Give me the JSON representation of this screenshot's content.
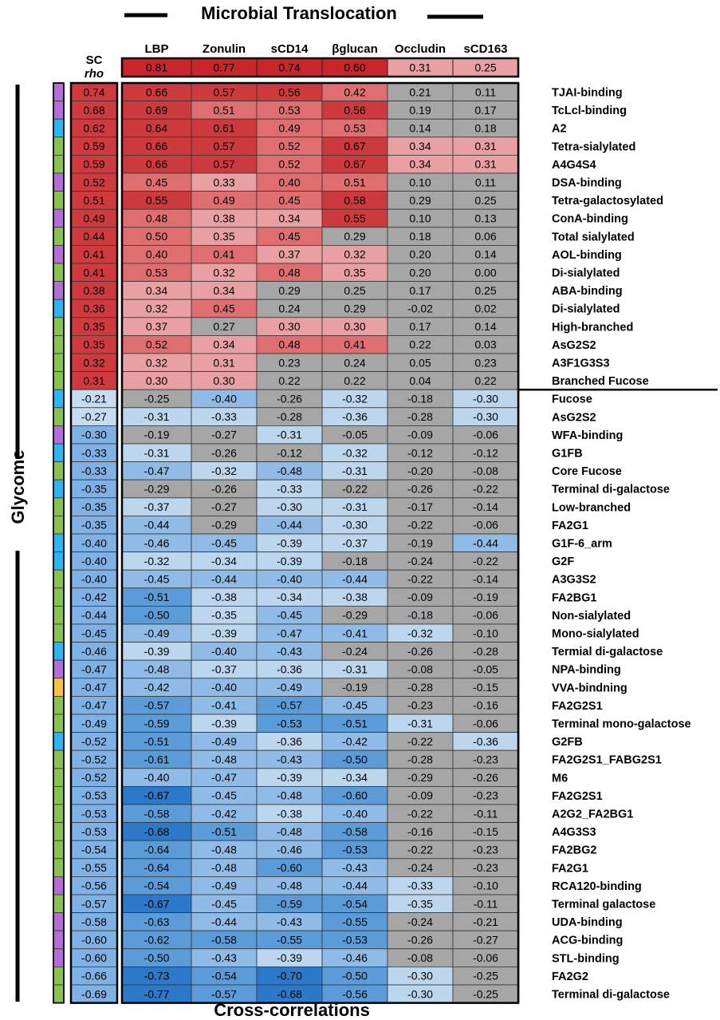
{
  "title": "Microbial Translocation",
  "left_label": "Glycome",
  "bottom_label": "Cross-correlations",
  "sc_header": [
    "SC",
    "rho"
  ],
  "chart_data": {
    "type": "heatmap",
    "title": "Microbial Translocation",
    "columns": [
      "LBP",
      "Zonulin",
      "sCD14",
      "βglucan",
      "Occludin",
      "sCD163"
    ],
    "header_rho": [
      0.81,
      0.77,
      0.74,
      0.6,
      0.31,
      0.25
    ],
    "rows": [
      {
        "name": "TJAI-binding",
        "group": "lectin",
        "sc": "0.74",
        "values": [
          "0.66",
          "0.57",
          "0.56",
          "0.42",
          "0.21",
          "0.11"
        ]
      },
      {
        "name": "TcLcl-binding",
        "group": "lectin",
        "sc": "0.68",
        "values": [
          "0.69",
          "0.51",
          "0.53",
          "0.56",
          "0.19",
          "0.17"
        ]
      },
      {
        "name": "A2",
        "group": "igg",
        "sc": "0.62",
        "values": [
          "0.64",
          "0.61",
          "0.49",
          "0.53",
          "0.14",
          "0.18"
        ]
      },
      {
        "name": "Tetra-sialylated",
        "group": "nglycan",
        "sc": "0.59",
        "values": [
          "0.66",
          "0.57",
          "0.52",
          "0.67",
          "0.34",
          "0.31"
        ]
      },
      {
        "name": "A4G4S4",
        "group": "nglycan",
        "sc": "0.59",
        "values": [
          "0.66",
          "0.57",
          "0.52",
          "0.67",
          "0.34",
          "0.31"
        ]
      },
      {
        "name": "DSA-binding",
        "group": "lectin",
        "sc": "0.52",
        "values": [
          "0.45",
          "0.33",
          "0.40",
          "0.51",
          "0.10",
          "0.11"
        ]
      },
      {
        "name": "Tetra-galactosylated",
        "group": "nglycan",
        "sc": "0.51",
        "values": [
          "0.55",
          "0.49",
          "0.45",
          "0.58",
          "0.29",
          "0.25"
        ]
      },
      {
        "name": "ConA-binding",
        "group": "lectin",
        "sc": "0.49",
        "values": [
          "0.48",
          "0.38",
          "0.34",
          "0.55",
          "0.10",
          "0.13"
        ]
      },
      {
        "name": "Total sialylated",
        "group": "nglycan",
        "sc": "0.44",
        "values": [
          "0.50",
          "0.35",
          "0.45",
          "0.29",
          "0.18",
          "0.06"
        ]
      },
      {
        "name": "AOL-binding",
        "group": "lectin",
        "sc": "0.41",
        "values": [
          "0.40",
          "0.41",
          "0.37",
          "0.32",
          "0.20",
          "0.14"
        ]
      },
      {
        "name": "Di-sialylated",
        "group": "nglycan",
        "sc": "0.41",
        "values": [
          "0.53",
          "0.32",
          "0.48",
          "0.35",
          "0.20",
          "0.00"
        ]
      },
      {
        "name": "ABA-binding",
        "group": "lectin",
        "sc": "0.38",
        "values": [
          "0.34",
          "0.34",
          "0.29",
          "0.25",
          "0.17",
          "0.25"
        ]
      },
      {
        "name": "Di-sialylated",
        "group": "igg",
        "sc": "0.36",
        "values": [
          "0.32",
          "0.45",
          "0.24",
          "0.29",
          "-0.02",
          "0.02"
        ]
      },
      {
        "name": "High-branched",
        "group": "nglycan",
        "sc": "0.35",
        "values": [
          "0.37",
          "0.27",
          "0.30",
          "0.30",
          "0.17",
          "0.14"
        ]
      },
      {
        "name": "AsG2S2",
        "group": "nglycan",
        "sc": "0.35",
        "values": [
          "0.52",
          "0.34",
          "0.48",
          "0.41",
          "0.22",
          "0.03"
        ]
      },
      {
        "name": "A3F1G3S3",
        "group": "nglycan",
        "sc": "0.32",
        "values": [
          "0.32",
          "0.31",
          "0.23",
          "0.24",
          "0.05",
          "0.23"
        ]
      },
      {
        "name": "Branched Fucose",
        "group": "nglycan",
        "sc": "0.31",
        "values": [
          "0.30",
          "0.30",
          "0.22",
          "0.22",
          "0.04",
          "0.22"
        ]
      },
      {
        "name": "Fucose",
        "group": "igg",
        "sc": "-0.21",
        "values": [
          "-0.25",
          "-0.40",
          "-0.26",
          "-0.32",
          "-0.18",
          "-0.30"
        ]
      },
      {
        "name": "AsG2S2",
        "group": "nglycan",
        "sc": "-0.27",
        "values": [
          "-0.31",
          "-0.33",
          "-0.28",
          "-0.36",
          "-0.28",
          "-0.30"
        ]
      },
      {
        "name": "WFA-binding",
        "group": "lectin",
        "sc": "-0.30",
        "values": [
          "-0.19",
          "-0.27",
          "-0.31",
          "-0.05",
          "-0.09",
          "-0.06"
        ]
      },
      {
        "name": "G1FB",
        "group": "igg",
        "sc": "-0.33",
        "values": [
          "-0.31",
          "-0.26",
          "-0.12",
          "-0.32",
          "-0.12",
          "-0.12"
        ]
      },
      {
        "name": "Core Fucose",
        "group": "nglycan",
        "sc": "-0.33",
        "values": [
          "-0.47",
          "-0.32",
          "-0.48",
          "-0.31",
          "-0.20",
          "-0.08"
        ]
      },
      {
        "name": "Terminal di-galactose",
        "group": "igg",
        "sc": "-0.35",
        "values": [
          "-0.29",
          "-0.26",
          "-0.33",
          "-0.22",
          "-0.26",
          "-0.22"
        ]
      },
      {
        "name": "Low-branched",
        "group": "nglycan",
        "sc": "-0.35",
        "values": [
          "-0.37",
          "-0.27",
          "-0.30",
          "-0.31",
          "-0.17",
          "-0.14"
        ]
      },
      {
        "name": "FA2G1",
        "group": "nglycan",
        "sc": "-0.35",
        "values": [
          "-0.44",
          "-0.29",
          "-0.44",
          "-0.30",
          "-0.22",
          "-0.06"
        ]
      },
      {
        "name": "G1F-6_arm",
        "group": "igg",
        "sc": "-0.40",
        "values": [
          "-0.46",
          "-0.45",
          "-0.39",
          "-0.37",
          "-0.19",
          "-0.44"
        ]
      },
      {
        "name": "G2F",
        "group": "igg",
        "sc": "-0.40",
        "values": [
          "-0.32",
          "-0.34",
          "-0.39",
          "-0.18",
          "-0.24",
          "-0.22"
        ]
      },
      {
        "name": "A3G3S2",
        "group": "nglycan",
        "sc": "-0.40",
        "values": [
          "-0.45",
          "-0.44",
          "-0.40",
          "-0.44",
          "-0.22",
          "-0.14"
        ]
      },
      {
        "name": "FA2BG1",
        "group": "nglycan",
        "sc": "-0.42",
        "values": [
          "-0.51",
          "-0.38",
          "-0.34",
          "-0.38",
          "-0.09",
          "-0.19"
        ]
      },
      {
        "name": "Non-sialylated",
        "group": "nglycan",
        "sc": "-0.44",
        "values": [
          "-0.50",
          "-0.35",
          "-0.45",
          "-0.29",
          "-0.18",
          "-0.06"
        ]
      },
      {
        "name": "Mono-sialylated",
        "group": "nglycan",
        "sc": "-0.45",
        "values": [
          "-0.49",
          "-0.39",
          "-0.47",
          "-0.41",
          "-0.32",
          "-0.10"
        ]
      },
      {
        "name": "Termial di-galactose",
        "group": "igg",
        "sc": "-0.46",
        "values": [
          "-0.39",
          "-0.40",
          "-0.43",
          "-0.24",
          "-0.26",
          "-0.28"
        ]
      },
      {
        "name": "NPA-binding",
        "group": "lectin",
        "sc": "-0.47",
        "values": [
          "-0.48",
          "-0.37",
          "-0.36",
          "-0.31",
          "-0.08",
          "-0.05"
        ]
      },
      {
        "name": "VVA-bindning",
        "group": "other",
        "sc": "-0.47",
        "values": [
          "-0.42",
          "-0.40",
          "-0.49",
          "-0.19",
          "-0.28",
          "-0.15"
        ]
      },
      {
        "name": "FA2G2S1",
        "group": "nglycan",
        "sc": "-0.47",
        "values": [
          "-0.57",
          "-0.41",
          "-0.57",
          "-0.45",
          "-0.23",
          "-0.16"
        ]
      },
      {
        "name": "Terminal mono-galactose",
        "group": "nglycan",
        "sc": "-0.49",
        "values": [
          "-0.59",
          "-0.39",
          "-0.53",
          "-0.51",
          "-0.31",
          "-0.06"
        ]
      },
      {
        "name": "G2FB",
        "group": "igg",
        "sc": "-0.52",
        "values": [
          "-0.51",
          "-0.49",
          "-0.36",
          "-0.42",
          "-0.22",
          "-0.36"
        ]
      },
      {
        "name": "FA2G2S1_FABG2S1",
        "group": "nglycan",
        "sc": "-0.52",
        "values": [
          "-0.61",
          "-0.48",
          "-0.43",
          "-0.50",
          "-0.28",
          "-0.23"
        ]
      },
      {
        "name": "M6",
        "group": "nglycan",
        "sc": "-0.52",
        "values": [
          "-0.40",
          "-0.47",
          "-0.39",
          "-0.34",
          "-0.29",
          "-0.26"
        ]
      },
      {
        "name": "FA2G2S1",
        "group": "nglycan",
        "sc": "-0.53",
        "values": [
          "-0.67",
          "-0.45",
          "-0.48",
          "-0.60",
          "-0.09",
          "-0.23"
        ]
      },
      {
        "name": "A2G2_FA2BG1",
        "group": "nglycan",
        "sc": "-0.53",
        "values": [
          "-0.58",
          "-0.42",
          "-0.38",
          "-0.40",
          "-0.22",
          "-0.11"
        ]
      },
      {
        "name": "A4G3S3",
        "group": "nglycan",
        "sc": "-0.53",
        "values": [
          "-0.68",
          "-0.51",
          "-0.48",
          "-0.58",
          "-0.16",
          "-0.15"
        ]
      },
      {
        "name": "FA2BG2",
        "group": "nglycan",
        "sc": "-0.54",
        "values": [
          "-0.64",
          "-0.48",
          "-0.46",
          "-0.53",
          "-0.22",
          "-0.23"
        ]
      },
      {
        "name": "FA2G1",
        "group": "nglycan",
        "sc": "-0.55",
        "values": [
          "-0.64",
          "-0.48",
          "-0.60",
          "-0.43",
          "-0.24",
          "-0.23"
        ]
      },
      {
        "name": "RCA120-binding",
        "group": "lectin",
        "sc": "-0.56",
        "values": [
          "-0.54",
          "-0.49",
          "-0.48",
          "-0.44",
          "-0.33",
          "-0.10"
        ]
      },
      {
        "name": "Terminal galactose",
        "group": "nglycan",
        "sc": "-0.57",
        "values": [
          "-0.67",
          "-0.45",
          "-0.59",
          "-0.54",
          "-0.35",
          "-0.11"
        ]
      },
      {
        "name": "UDA-binding",
        "group": "lectin",
        "sc": "-0.58",
        "values": [
          "-0.63",
          "-0.44",
          "-0.43",
          "-0.55",
          "-0.24",
          "-0.21"
        ]
      },
      {
        "name": "ACG-binding",
        "group": "lectin",
        "sc": "-0.60",
        "values": [
          "-0.62",
          "-0.58",
          "-0.55",
          "-0.53",
          "-0.26",
          "-0.27"
        ]
      },
      {
        "name": "STL-binding",
        "group": "lectin",
        "sc": "-0.60",
        "values": [
          "-0.50",
          "-0.43",
          "-0.39",
          "-0.46",
          "-0.08",
          "-0.06"
        ]
      },
      {
        "name": "FA2G2",
        "group": "nglycan",
        "sc": "-0.66",
        "values": [
          "-0.73",
          "-0.54",
          "-0.70",
          "-0.50",
          "-0.30",
          "-0.25"
        ]
      },
      {
        "name": "Terminal di-galactose",
        "group": "nglycan",
        "sc": "-0.69",
        "values": [
          "-0.77",
          "-0.57",
          "-0.68",
          "-0.56",
          "-0.30",
          "-0.25"
        ]
      }
    ],
    "group_colors": {
      "lectin": "#b36fd6",
      "igg": "#2eb5f0",
      "nglycan": "#8cc152",
      "other": "#f6c243"
    },
    "colors": {
      "not_significant": "#a6a6a6",
      "pos_light": "#e9a0a2",
      "pos_mid": "#df6e71",
      "pos_strong": "#cd3a3e",
      "pos_header": "#c8262b",
      "neg_light": "#bcd6ee",
      "neg_mid": "#8fbbe6",
      "neg_strong": "#5b9bd8",
      "neg_deep": "#2d79c9",
      "sc_pos": "#cf3a3f",
      "sc_neg": "#7fb1e4",
      "sc_neg_light": "#c5dcf1"
    }
  }
}
